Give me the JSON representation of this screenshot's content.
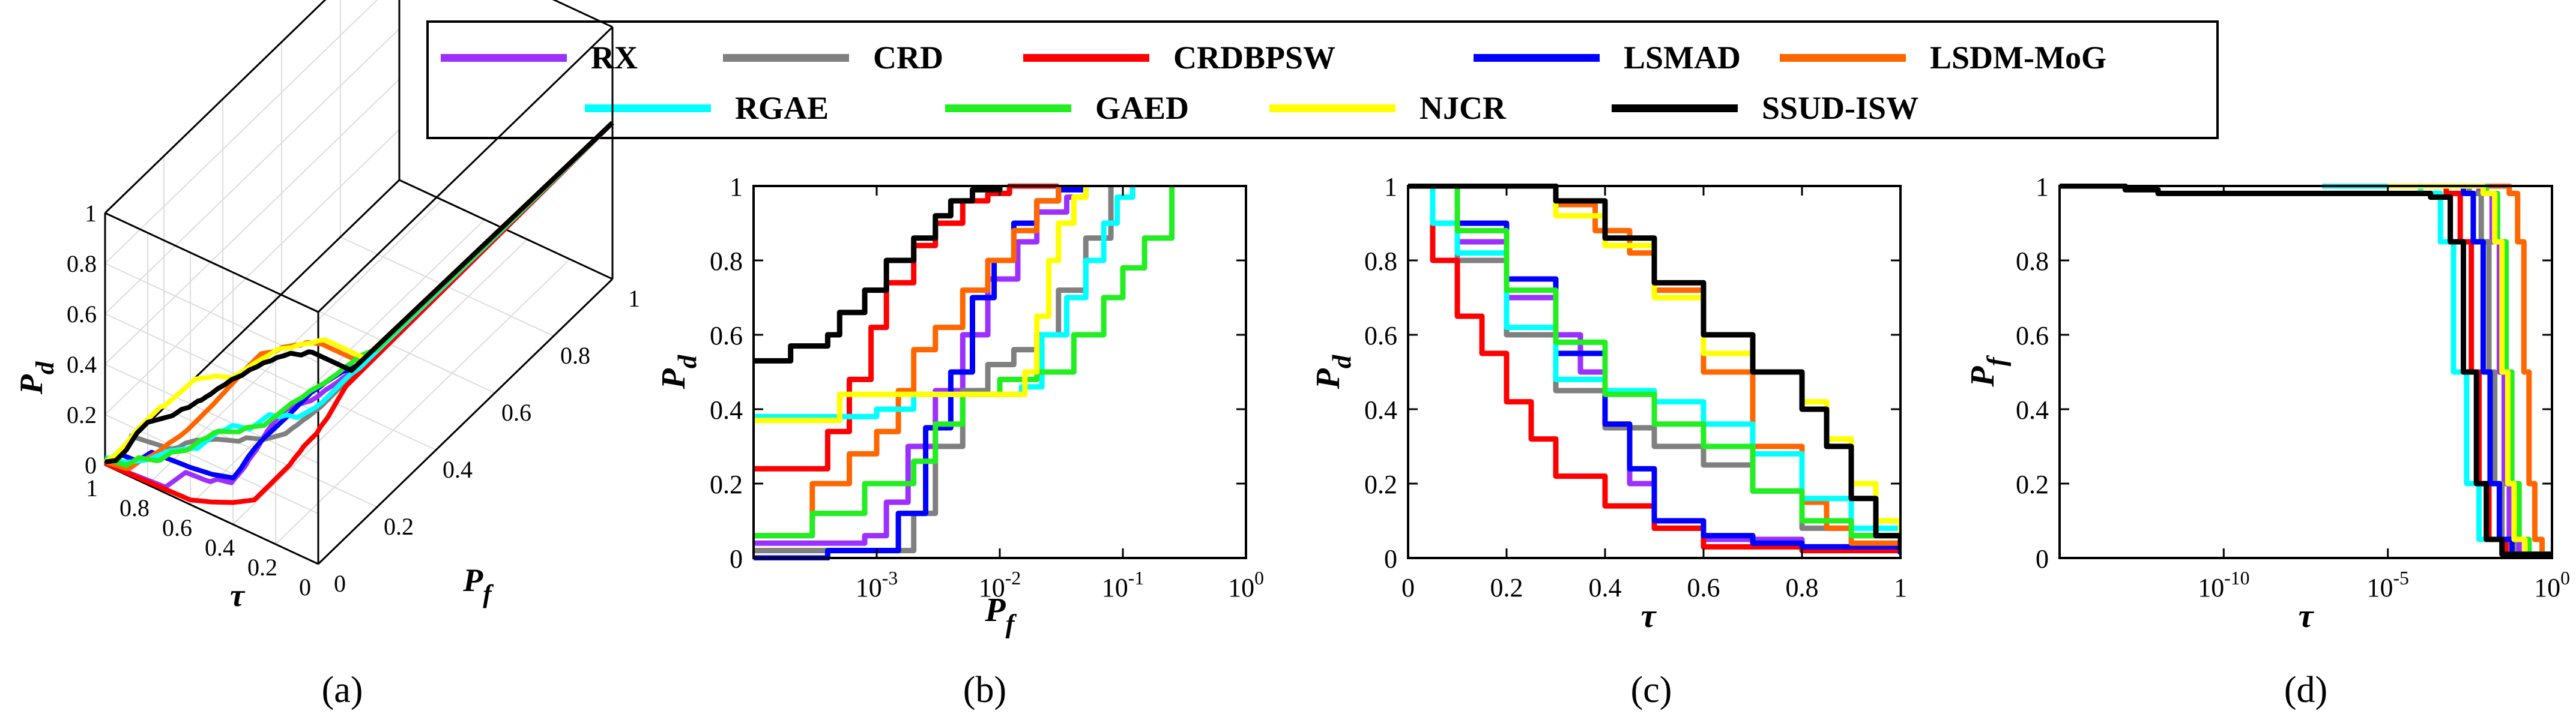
{
  "legend": [
    {
      "name": "RX",
      "color": "#9b30ff"
    },
    {
      "name": "CRD",
      "color": "#808080"
    },
    {
      "name": "CRDBPSW",
      "color": "#ff0000"
    },
    {
      "name": "LSMAD",
      "color": "#0000ff"
    },
    {
      "name": "LSDM-MoG",
      "color": "#ff6600"
    },
    {
      "name": "RGAE",
      "color": "#00ffff"
    },
    {
      "name": "GAED",
      "color": "#22ee22"
    },
    {
      "name": "NJCR",
      "color": "#ffff00"
    },
    {
      "name": "SSUD-ISW",
      "color": "#000000"
    }
  ],
  "chart_data": [
    {
      "panel": "(a)",
      "type": "line",
      "title": "",
      "xlabel": "τ",
      "ylabel": "P_f",
      "zlabel": "P_d",
      "x_ticks": [
        "1",
        "0.8",
        "0.6",
        "0.4",
        "0.2",
        "0"
      ],
      "y_ticks": [
        "0",
        "0.2",
        "0.4",
        "0.6",
        "0.8",
        "1"
      ],
      "z_ticks": [
        "0",
        "0.2",
        "0.4",
        "0.6",
        "0.8",
        "1"
      ],
      "note": "3D ROC curves (P_d, P_f, τ) for each method"
    },
    {
      "panel": "(b)",
      "type": "line",
      "xscale": "log",
      "xlim": [
        0.0001,
        1
      ],
      "ylim": [
        0,
        1
      ],
      "xlabel": "P_f",
      "ylabel": "P_d",
      "x_ticks": [
        "10^-3",
        "10^-2",
        "10^-1",
        "10^0"
      ],
      "y_ticks": [
        "0",
        "0.2",
        "0.4",
        "0.6",
        "0.8",
        "1"
      ],
      "series": [
        {
          "name": "RX",
          "x": [
            0.0001,
            0.0008,
            0.0012,
            0.0018,
            0.003,
            0.005,
            0.008,
            0.014,
            0.02,
            0.035,
            0.05
          ],
          "y": [
            0.04,
            0.06,
            0.15,
            0.3,
            0.45,
            0.6,
            0.75,
            0.85,
            0.93,
            0.97,
            1.0
          ]
        },
        {
          "name": "CRD",
          "x": [
            0.0001,
            0.0012,
            0.002,
            0.003,
            0.005,
            0.008,
            0.013,
            0.02,
            0.03,
            0.05,
            0.08
          ],
          "y": [
            0.02,
            0.02,
            0.12,
            0.3,
            0.45,
            0.52,
            0.56,
            0.6,
            0.72,
            0.86,
            1.0
          ]
        },
        {
          "name": "CRDBPSW",
          "x": [
            0.0001,
            0.0004,
            0.0006,
            0.0009,
            0.0012,
            0.002,
            0.003,
            0.005,
            0.008,
            0.012,
            0.02,
            0.03
          ],
          "y": [
            0.24,
            0.34,
            0.48,
            0.62,
            0.74,
            0.84,
            0.9,
            0.96,
            0.98,
            1.0,
            1.0,
            1.0
          ]
        },
        {
          "name": "LSMAD",
          "x": [
            0.0001,
            0.0004,
            0.0015,
            0.0025,
            0.004,
            0.006,
            0.009,
            0.013,
            0.02,
            0.03,
            0.05
          ],
          "y": [
            0.0,
            0.02,
            0.12,
            0.35,
            0.5,
            0.7,
            0.8,
            0.9,
            0.96,
            0.99,
            1.0
          ]
        },
        {
          "name": "LSDM-MoG",
          "x": [
            0.0001,
            0.0003,
            0.0006,
            0.001,
            0.0015,
            0.002,
            0.003,
            0.005,
            0.008,
            0.013,
            0.02,
            0.03
          ],
          "y": [
            0.06,
            0.2,
            0.28,
            0.34,
            0.45,
            0.56,
            0.62,
            0.72,
            0.8,
            0.88,
            0.96,
            1.0
          ]
        },
        {
          "name": "RGAE",
          "x": [
            0.0001,
            0.001,
            0.002,
            0.008,
            0.015,
            0.022,
            0.035,
            0.05,
            0.07,
            0.09,
            0.12
          ],
          "y": [
            0.38,
            0.4,
            0.44,
            0.44,
            0.46,
            0.6,
            0.7,
            0.8,
            0.9,
            0.97,
            1.0
          ]
        },
        {
          "name": "GAED",
          "x": [
            0.0001,
            0.0003,
            0.0008,
            0.002,
            0.003,
            0.005,
            0.01,
            0.02,
            0.04,
            0.07,
            0.1,
            0.15,
            0.25
          ],
          "y": [
            0.06,
            0.12,
            0.2,
            0.26,
            0.36,
            0.44,
            0.48,
            0.5,
            0.6,
            0.7,
            0.78,
            0.86,
            1.0
          ]
        },
        {
          "name": "NJCR",
          "x": [
            0.0001,
            0.0005,
            0.002,
            0.006,
            0.014,
            0.016,
            0.02,
            0.025,
            0.03,
            0.04,
            0.05
          ],
          "y": [
            0.37,
            0.44,
            0.44,
            0.44,
            0.44,
            0.5,
            0.65,
            0.8,
            0.9,
            0.97,
            1.0
          ]
        },
        {
          "name": "SSUD-ISW",
          "x": [
            0.0001,
            0.0002,
            0.0004,
            0.0005,
            0.0008,
            0.0012,
            0.002,
            0.003,
            0.004,
            0.006,
            0.01
          ],
          "y": [
            0.53,
            0.57,
            0.6,
            0.66,
            0.72,
            0.8,
            0.86,
            0.92,
            0.96,
            0.99,
            1.0
          ]
        }
      ]
    },
    {
      "panel": "(c)",
      "type": "line",
      "xlim": [
        0,
        1
      ],
      "ylim": [
        0,
        1
      ],
      "xlabel": "τ",
      "ylabel": "P_d",
      "x_ticks": [
        "0",
        "0.2",
        "0.4",
        "0.6",
        "0.8",
        "1"
      ],
      "y_ticks": [
        "0",
        "0.2",
        "0.4",
        "0.6",
        "0.8",
        "1"
      ],
      "series": [
        {
          "name": "RX",
          "x": [
            0.0,
            0.1,
            0.2,
            0.3,
            0.35,
            0.4,
            0.45,
            0.5,
            0.6,
            0.8,
            1.0
          ],
          "y": [
            1.0,
            0.85,
            0.7,
            0.6,
            0.5,
            0.35,
            0.2,
            0.08,
            0.05,
            0.03,
            0.01
          ]
        },
        {
          "name": "CRD",
          "x": [
            0.0,
            0.1,
            0.2,
            0.3,
            0.4,
            0.5,
            0.6,
            0.7,
            0.8,
            0.9,
            1.0
          ],
          "y": [
            1.0,
            0.8,
            0.6,
            0.45,
            0.35,
            0.3,
            0.25,
            0.18,
            0.08,
            0.06,
            0.04
          ]
        },
        {
          "name": "CRDBPSW",
          "x": [
            0.0,
            0.05,
            0.1,
            0.15,
            0.2,
            0.25,
            0.3,
            0.4,
            0.5,
            0.6,
            0.8,
            1.0
          ],
          "y": [
            1.0,
            0.8,
            0.65,
            0.55,
            0.42,
            0.32,
            0.22,
            0.14,
            0.08,
            0.03,
            0.02,
            0.01
          ]
        },
        {
          "name": "LSMAD",
          "x": [
            0.0,
            0.1,
            0.2,
            0.3,
            0.4,
            0.45,
            0.5,
            0.6,
            0.7,
            0.8,
            1.0
          ],
          "y": [
            1.0,
            0.9,
            0.75,
            0.55,
            0.36,
            0.24,
            0.1,
            0.06,
            0.04,
            0.03,
            0.01
          ]
        },
        {
          "name": "LSDM-MoG",
          "x": [
            0.0,
            0.2,
            0.3,
            0.38,
            0.45,
            0.5,
            0.6,
            0.7,
            0.8,
            0.85,
            0.9,
            1.0
          ],
          "y": [
            1.0,
            1.0,
            0.95,
            0.88,
            0.82,
            0.72,
            0.5,
            0.3,
            0.15,
            0.08,
            0.04,
            0.02
          ]
        },
        {
          "name": "RGAE",
          "x": [
            0.0,
            0.05,
            0.1,
            0.2,
            0.3,
            0.4,
            0.5,
            0.6,
            0.7,
            0.8,
            0.9,
            1.0
          ],
          "y": [
            1.0,
            0.9,
            0.82,
            0.62,
            0.48,
            0.45,
            0.42,
            0.36,
            0.28,
            0.16,
            0.08,
            0.05
          ]
        },
        {
          "name": "GAED",
          "x": [
            0.0,
            0.1,
            0.2,
            0.3,
            0.4,
            0.5,
            0.6,
            0.7,
            0.8,
            0.9,
            1.0
          ],
          "y": [
            1.0,
            0.88,
            0.72,
            0.58,
            0.44,
            0.36,
            0.3,
            0.18,
            0.1,
            0.06,
            0.04
          ]
        },
        {
          "name": "NJCR",
          "x": [
            0.0,
            0.2,
            0.3,
            0.4,
            0.5,
            0.6,
            0.7,
            0.8,
            0.85,
            0.9,
            0.95,
            1.0
          ],
          "y": [
            1.0,
            1.0,
            0.92,
            0.84,
            0.7,
            0.55,
            0.5,
            0.42,
            0.32,
            0.2,
            0.1,
            0.02
          ]
        },
        {
          "name": "SSUD-ISW",
          "x": [
            0.0,
            0.2,
            0.3,
            0.4,
            0.5,
            0.6,
            0.7,
            0.8,
            0.85,
            0.9,
            0.95,
            1.0
          ],
          "y": [
            1.0,
            1.0,
            0.96,
            0.86,
            0.74,
            0.6,
            0.5,
            0.4,
            0.3,
            0.16,
            0.06,
            0.02
          ]
        }
      ]
    },
    {
      "panel": "(d)",
      "type": "line",
      "xscale": "log",
      "xlim": [
        1e-15,
        1
      ],
      "ylim": [
        0,
        1
      ],
      "xlabel": "τ",
      "ylabel": "P_f",
      "x_ticks": [
        "10^-10",
        "10^-5",
        "10^0"
      ],
      "y_ticks": [
        "0",
        "0.2",
        "0.4",
        "0.6",
        "0.8",
        "1"
      ],
      "series": [
        {
          "name": "RX",
          "x": [
            1e-05,
            0.001,
            0.006,
            0.015,
            0.025,
            0.035,
            0.05,
            0.1,
            1.0
          ],
          "y": [
            1.0,
            1.0,
            0.98,
            0.85,
            0.5,
            0.2,
            0.05,
            0.01,
            0.0
          ]
        },
        {
          "name": "CRD",
          "x": [
            1e-05,
            0.001,
            0.003,
            0.007,
            0.012,
            0.018,
            0.03,
            0.07,
            1.0
          ],
          "y": [
            1.0,
            1.0,
            0.98,
            0.85,
            0.5,
            0.2,
            0.05,
            0.01,
            0.0
          ]
        },
        {
          "name": "CRDBPSW",
          "x": [
            1e-05,
            0.0001,
            0.0006,
            0.0016,
            0.0035,
            0.006,
            0.012,
            0.04,
            1.0
          ],
          "y": [
            1.0,
            1.0,
            0.98,
            0.85,
            0.5,
            0.2,
            0.05,
            0.01,
            0.0
          ]
        },
        {
          "name": "LSMAD",
          "x": [
            1e-05,
            0.001,
            0.002,
            0.004,
            0.008,
            0.013,
            0.025,
            0.06,
            1.0
          ],
          "y": [
            1.0,
            1.0,
            0.98,
            0.85,
            0.5,
            0.2,
            0.05,
            0.01,
            0.0
          ]
        },
        {
          "name": "LSDM-MoG",
          "x": [
            0.0001,
            0.01,
            0.05,
            0.09,
            0.14,
            0.2,
            0.3,
            0.5,
            1.0
          ],
          "y": [
            1.0,
            1.0,
            0.98,
            0.85,
            0.5,
            0.2,
            0.05,
            0.01,
            0.0
          ]
        },
        {
          "name": "RGAE",
          "x": [
            1e-07,
            1e-05,
            0.0001,
            0.0004,
            0.001,
            0.0025,
            0.006,
            0.03,
            1.0
          ],
          "y": [
            1.0,
            1.0,
            0.98,
            0.85,
            0.5,
            0.2,
            0.05,
            0.01,
            0.0
          ]
        },
        {
          "name": "GAED",
          "x": [
            1e-05,
            0.001,
            0.01,
            0.022,
            0.04,
            0.06,
            0.1,
            0.2,
            1.0
          ],
          "y": [
            1.0,
            1.0,
            0.98,
            0.85,
            0.5,
            0.2,
            0.05,
            0.01,
            0.0
          ]
        },
        {
          "name": "NJCR",
          "x": [
            1e-05,
            0.001,
            0.008,
            0.018,
            0.03,
            0.045,
            0.07,
            0.15,
            1.0
          ],
          "y": [
            1.0,
            1.0,
            0.98,
            0.85,
            0.5,
            0.2,
            0.05,
            0.01,
            0.0
          ]
        },
        {
          "name": "SSUD-ISW",
          "x": [
            1e-15,
            1e-14,
            1e-13,
            1e-12,
            1e-09,
            1e-06,
            0.0002,
            0.0008,
            0.002,
            0.005,
            0.01,
            0.03,
            1.0
          ],
          "y": [
            1.0,
            1.0,
            0.99,
            0.98,
            0.98,
            0.98,
            0.97,
            0.85,
            0.5,
            0.2,
            0.05,
            0.01,
            0.0
          ]
        }
      ]
    }
  ]
}
